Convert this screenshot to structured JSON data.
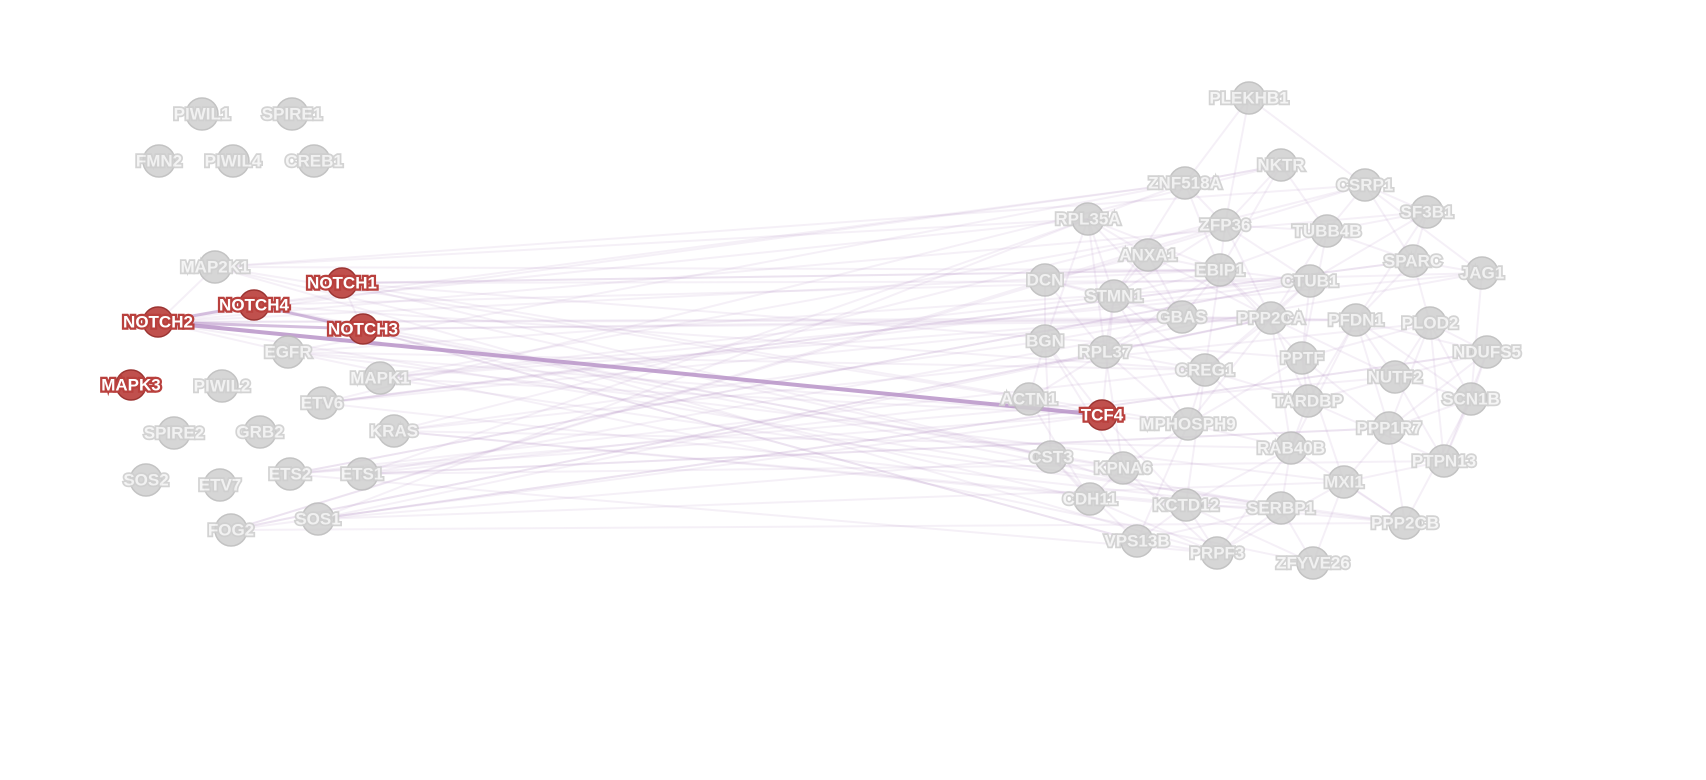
{
  "colors": {
    "background": "#ffffff",
    "edge": "#b58ac0",
    "highlight_node": "#c0504d",
    "dim_node": "#cfcfcf"
  },
  "network": {
    "highlighted_nodes": [
      "NOTCH1",
      "NOTCH2",
      "NOTCH3",
      "NOTCH4",
      "MAPK3",
      "TCF4"
    ],
    "left_cluster": [
      "PIWIL1",
      "SPIRE1",
      "FMN2",
      "PIWIL4",
      "CREB1",
      "MAP2K1",
      "NOTCH1",
      "NOTCH4",
      "NOTCH2",
      "NOTCH3",
      "EGFR",
      "MAPK3",
      "PIWIL2",
      "MAPK1",
      "ETV6",
      "SPIRE2",
      "GRB2",
      "KRAS",
      "SOS2",
      "ETV7",
      "ETS2",
      "ETS1",
      "FOG2",
      "SOS1"
    ],
    "right_cluster": [
      "PLEKHB1",
      "ZNF518A",
      "NKTR",
      "CSRP1",
      "SF3B1",
      "RPL35A",
      "ZFP36",
      "TUBB4B",
      "ANXA1",
      "EBIP1",
      "SPARC",
      "JAG1",
      "DCN",
      "STMN1",
      "CTUB1",
      "GBAS",
      "PPP2CA",
      "PFDN1",
      "PLOD2",
      "BGN",
      "RPL37",
      "PPTF",
      "NDUFS5",
      "CREG1",
      "NUTF2",
      "ACTN1",
      "TCF4",
      "MPHOSPH9",
      "TARDBP",
      "SCN1B",
      "PPP1R7",
      "CST3",
      "RAB40B",
      "PTPN13",
      "KPNA6",
      "MXI1",
      "CDH11",
      "KCTD12",
      "SERBP1",
      "PPP2CB",
      "VPS13B",
      "PRPF3",
      "ZFYVE26"
    ]
  }
}
